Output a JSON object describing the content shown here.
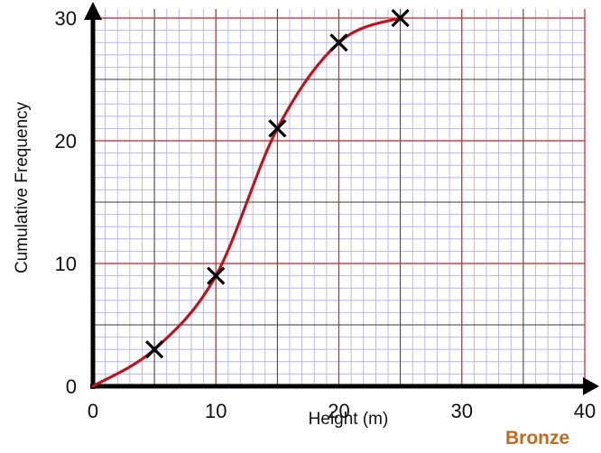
{
  "chart_data": {
    "type": "line",
    "title": "",
    "xlabel": "Height (m)",
    "ylabel": "Cumulative Frequency",
    "xlim": [
      0,
      40
    ],
    "ylim": [
      0,
      30
    ],
    "x_ticks": [
      "0",
      "10",
      "20",
      "30",
      "40"
    ],
    "y_ticks": [
      "0",
      "10",
      "20",
      "30"
    ],
    "grid": true,
    "minor_grid_step": 1,
    "mid_grid_step_x": 5,
    "mid_grid_step_y": 5,
    "major_grid_step": 10,
    "series": [
      {
        "points": [
          {
            "x": 5,
            "y": 3
          },
          {
            "x": 10,
            "y": 9
          },
          {
            "x": 15,
            "y": 21
          },
          {
            "x": 20,
            "y": 28
          },
          {
            "x": 25,
            "y": 30
          }
        ],
        "curve_start": {
          "x": 0,
          "y": 0
        },
        "marker": "cross",
        "line_color": "#c0141c"
      }
    ]
  },
  "colors": {
    "minor_grid": "#a9a9f2",
    "mid_grid": "#3a3a3a",
    "major_grid": "#cc2222",
    "axis": "#000000",
    "curve": "#c0141c",
    "badge": "#c26a1e"
  },
  "badge": {
    "text": "Bronze"
  }
}
